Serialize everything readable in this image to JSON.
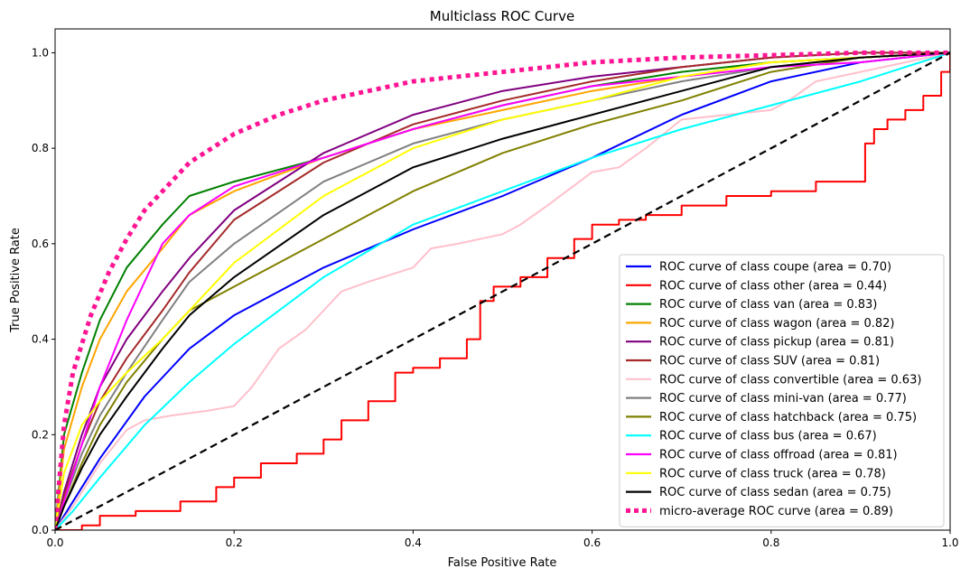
{
  "chart_data": {
    "type": "line",
    "title": "Multiclass ROC Curve",
    "xlabel": "False Positive Rate",
    "ylabel": "True Positive Rate",
    "xlim": [
      0.0,
      1.0
    ],
    "ylim": [
      0.0,
      1.05
    ],
    "x_ticks": [
      "0.0",
      "0.2",
      "0.4",
      "0.6",
      "0.8",
      "1.0"
    ],
    "y_ticks": [
      "0.0",
      "0.2",
      "0.4",
      "0.6",
      "0.8",
      "1.0"
    ],
    "grid": false,
    "legend_position": "bottom-right",
    "diagonal": {
      "x": [
        0,
        1
      ],
      "y": [
        0,
        1
      ],
      "color": "#000000",
      "style": "dashed"
    },
    "series": [
      {
        "name": "ROC curve of class coupe (area = 0.70)",
        "color": "#0000ff",
        "style": "solid",
        "x": [
          0,
          0.02,
          0.05,
          0.1,
          0.15,
          0.2,
          0.3,
          0.4,
          0.5,
          0.6,
          0.7,
          0.8,
          0.9,
          1.0
        ],
        "y": [
          0,
          0.06,
          0.15,
          0.28,
          0.38,
          0.45,
          0.55,
          0.63,
          0.7,
          0.78,
          0.87,
          0.94,
          0.98,
          1.0
        ]
      },
      {
        "name": "ROC curve of class other (area = 0.44)",
        "color": "#ff0000",
        "style": "step",
        "x": [
          0,
          0.03,
          0.05,
          0.09,
          0.14,
          0.18,
          0.2,
          0.23,
          0.27,
          0.3,
          0.32,
          0.35,
          0.38,
          0.4,
          0.43,
          0.46,
          0.475,
          0.49,
          0.52,
          0.55,
          0.58,
          0.6,
          0.63,
          0.66,
          0.7,
          0.75,
          0.8,
          0.85,
          0.9,
          0.905,
          0.915,
          0.93,
          0.95,
          0.97,
          0.99,
          1.0
        ],
        "y": [
          0,
          0.01,
          0.03,
          0.04,
          0.06,
          0.09,
          0.11,
          0.14,
          0.16,
          0.19,
          0.23,
          0.27,
          0.33,
          0.34,
          0.36,
          0.4,
          0.48,
          0.51,
          0.53,
          0.57,
          0.61,
          0.64,
          0.65,
          0.66,
          0.68,
          0.7,
          0.71,
          0.73,
          0.73,
          0.81,
          0.84,
          0.86,
          0.88,
          0.91,
          0.96,
          1.0
        ]
      },
      {
        "name": "ROC curve of class van (area = 0.83)",
        "color": "#008000",
        "style": "solid",
        "x": [
          0,
          0.01,
          0.03,
          0.05,
          0.08,
          0.12,
          0.15,
          0.2,
          0.3,
          0.4,
          0.5,
          0.6,
          0.7,
          0.8,
          0.9,
          1.0
        ],
        "y": [
          0,
          0.2,
          0.33,
          0.44,
          0.55,
          0.64,
          0.7,
          0.73,
          0.78,
          0.84,
          0.89,
          0.93,
          0.96,
          0.98,
          0.99,
          1.0
        ]
      },
      {
        "name": "ROC curve of class wagon (area = 0.82)",
        "color": "#ffa500",
        "style": "solid",
        "x": [
          0,
          0.01,
          0.03,
          0.05,
          0.08,
          0.12,
          0.15,
          0.2,
          0.3,
          0.4,
          0.5,
          0.6,
          0.7,
          0.8,
          0.9,
          1.0
        ],
        "y": [
          0,
          0.17,
          0.3,
          0.4,
          0.5,
          0.59,
          0.66,
          0.71,
          0.78,
          0.84,
          0.88,
          0.92,
          0.95,
          0.98,
          0.99,
          1.0
        ]
      },
      {
        "name": "ROC curve of class pickup (area = 0.81)",
        "color": "#800080",
        "style": "solid",
        "x": [
          0,
          0.01,
          0.03,
          0.05,
          0.08,
          0.12,
          0.15,
          0.2,
          0.3,
          0.4,
          0.5,
          0.6,
          0.7,
          0.8,
          0.9,
          1.0
        ],
        "y": [
          0,
          0.08,
          0.2,
          0.3,
          0.4,
          0.5,
          0.57,
          0.67,
          0.79,
          0.87,
          0.92,
          0.95,
          0.97,
          0.99,
          1.0,
          1.0
        ]
      },
      {
        "name": "ROC curve of class SUV (area = 0.81)",
        "color": "#a52a2a",
        "style": "solid",
        "x": [
          0,
          0.01,
          0.03,
          0.05,
          0.08,
          0.12,
          0.15,
          0.2,
          0.3,
          0.4,
          0.5,
          0.6,
          0.7,
          0.8,
          0.9,
          1.0
        ],
        "y": [
          0,
          0.07,
          0.18,
          0.27,
          0.36,
          0.46,
          0.54,
          0.65,
          0.77,
          0.85,
          0.9,
          0.94,
          0.97,
          0.99,
          1.0,
          1.0
        ]
      },
      {
        "name": "ROC curve of class convertible (area = 0.63)",
        "color": "#ffc0cb",
        "style": "solid",
        "x": [
          0,
          0.02,
          0.05,
          0.08,
          0.1,
          0.13,
          0.17,
          0.2,
          0.22,
          0.25,
          0.28,
          0.32,
          0.35,
          0.4,
          0.42,
          0.45,
          0.5,
          0.52,
          0.55,
          0.6,
          0.63,
          0.66,
          0.7,
          0.75,
          0.8,
          0.82,
          0.85,
          0.9,
          0.95,
          1.0
        ],
        "y": [
          0,
          0.05,
          0.14,
          0.21,
          0.23,
          0.24,
          0.25,
          0.26,
          0.3,
          0.38,
          0.42,
          0.5,
          0.52,
          0.55,
          0.59,
          0.6,
          0.62,
          0.64,
          0.68,
          0.75,
          0.76,
          0.8,
          0.86,
          0.87,
          0.88,
          0.9,
          0.94,
          0.96,
          0.98,
          1.0
        ]
      },
      {
        "name": "ROC curve of class mini-van (area = 0.77)",
        "color": "#808080",
        "style": "solid",
        "x": [
          0,
          0.01,
          0.03,
          0.05,
          0.08,
          0.12,
          0.15,
          0.2,
          0.3,
          0.4,
          0.5,
          0.6,
          0.7,
          0.8,
          0.9,
          1.0
        ],
        "y": [
          0,
          0.06,
          0.16,
          0.24,
          0.33,
          0.44,
          0.52,
          0.6,
          0.73,
          0.81,
          0.86,
          0.9,
          0.94,
          0.97,
          0.99,
          1.0
        ]
      },
      {
        "name": "ROC curve of class hatchback (area = 0.75)",
        "color": "#808000",
        "style": "solid",
        "x": [
          0,
          0.01,
          0.03,
          0.05,
          0.08,
          0.12,
          0.15,
          0.2,
          0.3,
          0.4,
          0.5,
          0.6,
          0.7,
          0.8,
          0.9,
          1.0
        ],
        "y": [
          0,
          0.05,
          0.14,
          0.22,
          0.31,
          0.4,
          0.46,
          0.51,
          0.61,
          0.71,
          0.79,
          0.85,
          0.9,
          0.96,
          0.99,
          1.0
        ]
      },
      {
        "name": "ROC curve of class bus (area = 0.67)",
        "color": "#00ffff",
        "style": "solid",
        "x": [
          0,
          0.02,
          0.05,
          0.1,
          0.15,
          0.2,
          0.3,
          0.4,
          0.5,
          0.6,
          0.7,
          0.8,
          0.9,
          1.0
        ],
        "y": [
          0,
          0.04,
          0.11,
          0.22,
          0.31,
          0.39,
          0.53,
          0.64,
          0.71,
          0.78,
          0.84,
          0.89,
          0.94,
          1.0
        ]
      },
      {
        "name": "ROC curve of class offroad (area = 0.81)",
        "color": "#ff00ff",
        "style": "solid",
        "x": [
          0,
          0.01,
          0.03,
          0.05,
          0.08,
          0.1,
          0.12,
          0.15,
          0.2,
          0.3,
          0.4,
          0.5,
          0.6,
          0.7,
          0.8,
          0.9,
          1.0
        ],
        "y": [
          0,
          0.06,
          0.18,
          0.3,
          0.44,
          0.52,
          0.6,
          0.66,
          0.72,
          0.78,
          0.84,
          0.89,
          0.93,
          0.95,
          0.97,
          0.98,
          1.0
        ]
      },
      {
        "name": "ROC curve of class truck (area = 0.78)",
        "color": "#ffff00",
        "style": "solid",
        "x": [
          0,
          0.01,
          0.03,
          0.05,
          0.08,
          0.12,
          0.15,
          0.2,
          0.3,
          0.4,
          0.5,
          0.6,
          0.7,
          0.8,
          0.9,
          1.0
        ],
        "y": [
          0,
          0.12,
          0.22,
          0.27,
          0.33,
          0.4,
          0.46,
          0.56,
          0.7,
          0.8,
          0.86,
          0.9,
          0.95,
          0.98,
          0.99,
          1.0
        ]
      },
      {
        "name": "ROC curve of class sedan (area = 0.75)",
        "color": "#000000",
        "style": "solid",
        "x": [
          0,
          0.01,
          0.03,
          0.05,
          0.08,
          0.12,
          0.15,
          0.2,
          0.3,
          0.4,
          0.5,
          0.6,
          0.7,
          0.8,
          0.9,
          1.0
        ],
        "y": [
          0,
          0.05,
          0.13,
          0.2,
          0.28,
          0.38,
          0.45,
          0.53,
          0.66,
          0.76,
          0.82,
          0.87,
          0.92,
          0.97,
          0.99,
          1.0
        ]
      },
      {
        "name": "micro-average ROC curve (area = 0.89)",
        "color": "#ff1493",
        "style": "dotted",
        "x": [
          0,
          0.01,
          0.02,
          0.04,
          0.06,
          0.08,
          0.1,
          0.15,
          0.2,
          0.25,
          0.3,
          0.4,
          0.5,
          0.6,
          0.7,
          0.8,
          0.9,
          1.0
        ],
        "y": [
          0,
          0.22,
          0.33,
          0.45,
          0.54,
          0.61,
          0.67,
          0.77,
          0.83,
          0.87,
          0.9,
          0.94,
          0.96,
          0.98,
          0.99,
          0.995,
          1.0,
          1.0
        ]
      }
    ]
  }
}
